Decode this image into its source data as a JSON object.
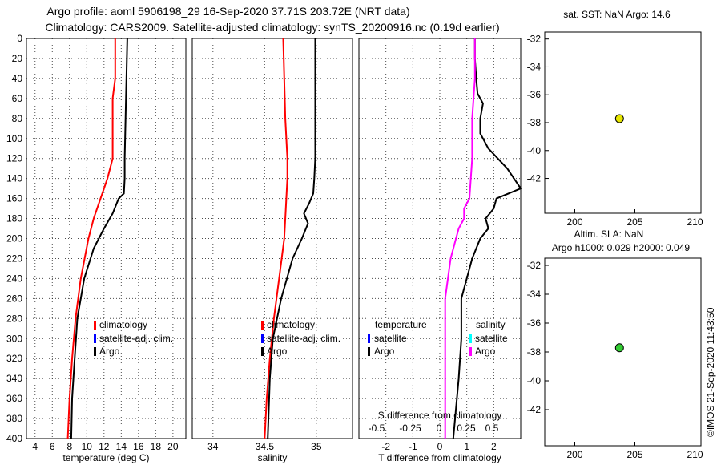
{
  "header": {
    "line1": "Argo profile: aoml 5906198_29 16-Sep-2020 37.71S 203.72E (NRT data)",
    "line2": "Climatology: CARS2009. Satellite-adjusted climatology: synTS_20200916.nc (0.19d earlier)"
  },
  "stamp": "©IMOS 21-Sep-2020 11:43:50",
  "colors": {
    "climatology": "#ff0000",
    "satellite": "#0000ff",
    "argo": "#000000",
    "salinity_diff": "#ff00ff",
    "salinity_sat": "#00ffff",
    "marker_sst": "#e6e600",
    "marker_sla": "#33cc33"
  },
  "depth_axis": {
    "range": [
      0,
      400
    ],
    "ticks": [
      0,
      20,
      40,
      60,
      80,
      100,
      120,
      140,
      160,
      180,
      200,
      220,
      240,
      260,
      280,
      300,
      320,
      340,
      360,
      380,
      400
    ]
  },
  "legend": {
    "climatology": "climatology",
    "sat_clim": "satellite-adj. clim.",
    "argo": "Argo",
    "temperature": "temperature",
    "salinity": "salinity",
    "satellite": "satellite"
  },
  "map_top": {
    "title": "sat. SST: NaN Argo: 14.6"
  },
  "map_bottom": {
    "title1": "Altim. SLA: NaN",
    "title2": "Argo h1000: 0.029 h2000: 0.049"
  },
  "chart_data": [
    {
      "type": "line",
      "name": "temperature",
      "xlabel": "temperature (deg C)",
      "xlim": [
        3,
        21.5
      ],
      "ylim": [
        400,
        0
      ],
      "xticks": [
        4,
        6,
        8,
        10,
        12,
        14,
        16,
        18,
        20
      ],
      "series": [
        {
          "name": "climatology",
          "depth": [
            0,
            40,
            60,
            120,
            140,
            160,
            180,
            200,
            240,
            280,
            320,
            360,
            400
          ],
          "values": [
            13.3,
            13.3,
            13.0,
            13.0,
            12.4,
            11.6,
            10.8,
            10.2,
            9.3,
            8.7,
            8.3,
            8.0,
            7.8
          ]
        },
        {
          "name": "Argo",
          "depth": [
            0,
            40,
            80,
            120,
            140,
            155,
            160,
            175,
            190,
            210,
            240,
            280,
            320,
            360,
            400
          ],
          "values": [
            14.7,
            14.6,
            14.5,
            14.4,
            14.4,
            14.3,
            13.7,
            13.0,
            12.0,
            10.8,
            9.7,
            8.9,
            8.6,
            8.3,
            8.2
          ]
        }
      ]
    },
    {
      "type": "line",
      "name": "salinity",
      "xlabel": "salinity",
      "xlim": [
        33.8,
        35.35
      ],
      "ylim": [
        400,
        0
      ],
      "xticks": [
        34,
        34.5,
        35
      ],
      "xticklabels": [
        "34",
        "34.5",
        "35"
      ],
      "series": [
        {
          "name": "climatology",
          "depth": [
            0,
            40,
            80,
            120,
            140,
            160,
            200,
            240,
            280,
            320,
            360,
            400
          ],
          "values": [
            34.68,
            34.69,
            34.7,
            34.72,
            34.72,
            34.71,
            34.69,
            34.64,
            34.59,
            34.55,
            34.52,
            34.5
          ]
        },
        {
          "name": "Argo",
          "depth": [
            0,
            40,
            80,
            120,
            140,
            155,
            165,
            175,
            185,
            200,
            220,
            260,
            300,
            340,
            400
          ],
          "values": [
            34.99,
            34.99,
            34.99,
            34.99,
            34.98,
            34.97,
            34.93,
            34.88,
            34.92,
            34.86,
            34.77,
            34.66,
            34.58,
            34.55,
            34.53
          ]
        }
      ]
    },
    {
      "type": "line",
      "name": "difference",
      "xlabel": "T difference from climatology",
      "xlim": [
        -3,
        3
      ],
      "ylim": [
        400,
        0
      ],
      "xticks": [
        -2,
        -1,
        0,
        1,
        2
      ],
      "xticklabels": [
        "-2",
        "-1",
        "0",
        "1",
        "2"
      ],
      "top_axis": {
        "label": "S difference from climatology",
        "ticks": [
          "-0.5",
          "-0.25",
          "0",
          "0.25",
          "0.5"
        ]
      },
      "series": [
        {
          "name": "T difference (Argo)",
          "depth": [
            0,
            20,
            40,
            55,
            65,
            80,
            95,
            110,
            130,
            150,
            160,
            170,
            180,
            190,
            200,
            220,
            260,
            300,
            340,
            400
          ],
          "values": [
            1.3,
            1.3,
            1.35,
            1.4,
            1.6,
            1.5,
            1.5,
            1.8,
            2.5,
            3.0,
            2.1,
            2.0,
            1.7,
            1.8,
            1.5,
            1.2,
            0.8,
            0.8,
            0.7,
            0.5
          ]
        },
        {
          "name": "S difference (Argo)",
          "depth": [
            0,
            40,
            80,
            120,
            160,
            170,
            180,
            190,
            200,
            220,
            260,
            300,
            340,
            400
          ],
          "values": [
            1.3,
            1.3,
            1.2,
            1.2,
            1.1,
            0.9,
            0.9,
            0.7,
            0.6,
            0.4,
            0.2,
            0.2,
            0.2,
            0.2
          ]
        }
      ]
    },
    {
      "type": "scatter",
      "name": "map_top",
      "xlim": [
        197.5,
        210.5
      ],
      "ylim": [
        -44.5,
        -31.5
      ],
      "xticks": [
        200,
        205,
        210
      ],
      "yticks": [
        -32,
        -34,
        -36,
        -38,
        -40,
        -42
      ],
      "points": [
        {
          "x": 203.72,
          "y": -37.71
        }
      ]
    },
    {
      "type": "scatter",
      "name": "map_bottom",
      "xlim": [
        197.5,
        210.5
      ],
      "ylim": [
        -44.5,
        -31.5
      ],
      "xticks": [
        200,
        205,
        210
      ],
      "yticks": [
        -32,
        -34,
        -36,
        -38,
        -40,
        -42
      ],
      "points": [
        {
          "x": 203.72,
          "y": -37.71
        }
      ]
    }
  ]
}
